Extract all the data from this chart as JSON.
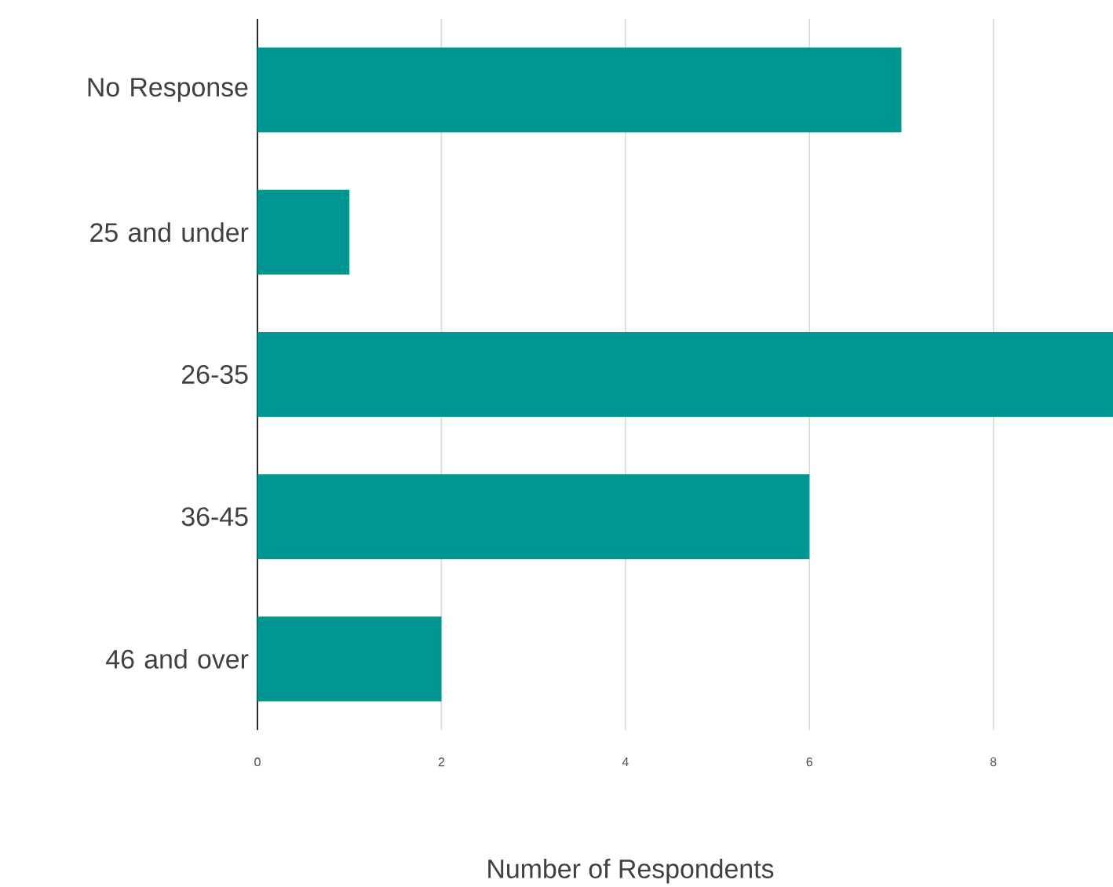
{
  "chart_data": {
    "type": "bar",
    "orientation": "horizontal",
    "xlabel": "Number of Respondents",
    "categories": [
      "No Response",
      "25 and under",
      "26-35",
      "36-45",
      "46 and over"
    ],
    "values": [
      7,
      1,
      9.3,
      6,
      2
    ],
    "color": "#009692",
    "xlim": [
      0,
      9.3
    ],
    "xticks": [
      0,
      2,
      4,
      6,
      8
    ],
    "grid": "x"
  }
}
